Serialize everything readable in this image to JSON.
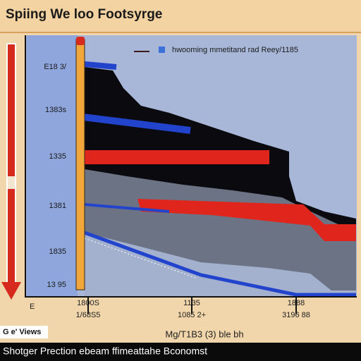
{
  "header": {
    "title": "Spiing We loo Footsyrge"
  },
  "legend": {
    "label": "hwooming mmetitand rad Reey/1185"
  },
  "y_labels": [
    "E18 3/",
    "1383s",
    "1335",
    "1381",
    "1835",
    "13 95"
  ],
  "corner_label": "E",
  "x_labels": [
    {
      "top": "1800S",
      "bottom": "1/68S5"
    },
    {
      "top": "1135",
      "bottom": "1085 2+"
    },
    {
      "top": "1888",
      "bottom": "3196 88"
    }
  ],
  "x_title": "Mg/T1B3 (3) ble bh",
  "badge": "G e' Views",
  "footer": "Shotger Prection ebeam ffimeattahe Bconomst"
}
